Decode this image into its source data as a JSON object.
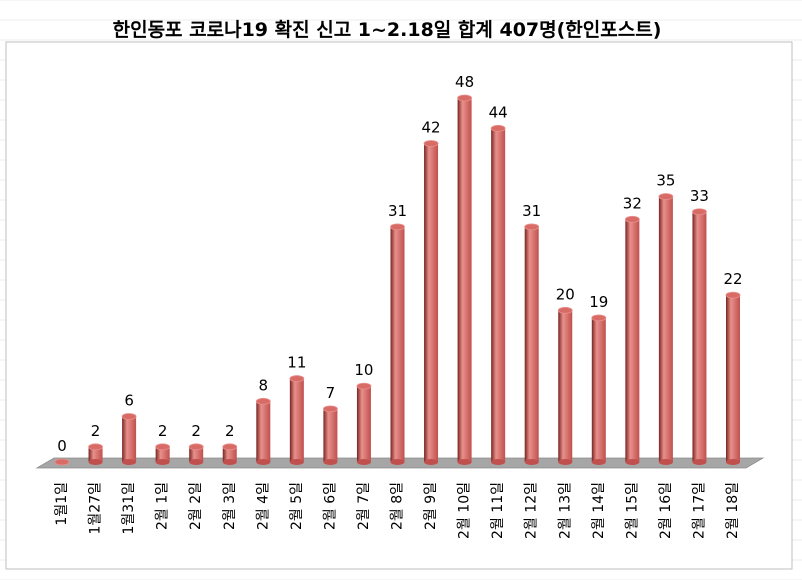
{
  "chart_data": {
    "type": "bar",
    "title": "한인동포 코로나19 확진 신고 1~2.18일 합계 407명(한인포스트)",
    "categories": [
      "1월1일",
      "1월27일",
      "1월31일",
      "2월 1일",
      "2월 2일",
      "2월 3일",
      "2월 4일",
      "2월 5일",
      "2월 6일",
      "2월 7일",
      "2월 8일",
      "2월 9일",
      "2월 10일",
      "2월 11일",
      "2월 12일",
      "2월 13일",
      "2월 14일",
      "2월 15일",
      "2월 16일",
      "2월 17일",
      "2월 18일"
    ],
    "values": [
      0,
      2,
      6,
      2,
      2,
      2,
      8,
      11,
      7,
      10,
      31,
      42,
      48,
      44,
      31,
      20,
      19,
      32,
      35,
      33,
      22
    ],
    "ylim": [
      0,
      50
    ],
    "grid": false,
    "legend": "none",
    "xlabel": "",
    "ylabel": "",
    "colors": {
      "bar": "#c0504d",
      "bar_light": "#e8908c",
      "bar_dark": "#7a2420",
      "floor": "#a6a6a6",
      "gridline": "#d9d9d9"
    }
  }
}
